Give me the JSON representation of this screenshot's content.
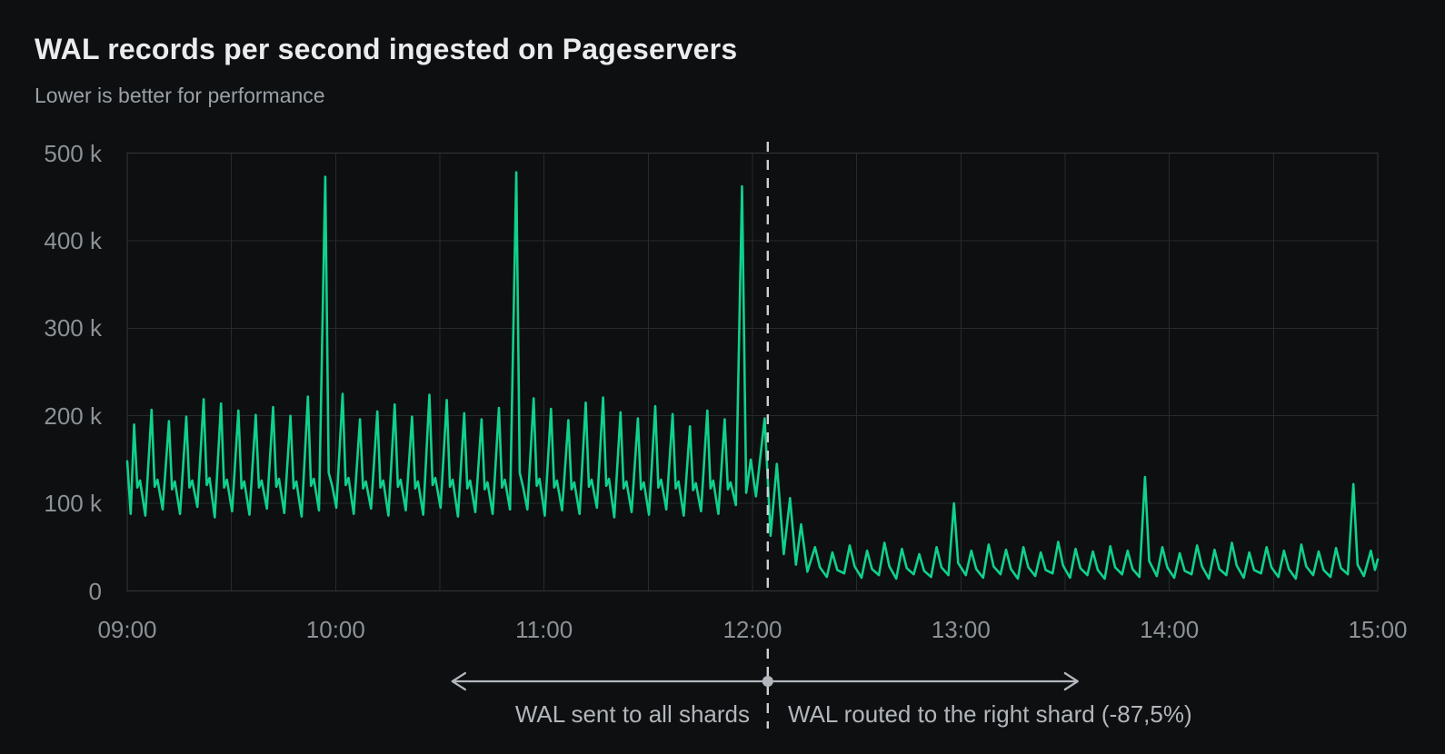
{
  "page": {
    "background": "#0d0f10"
  },
  "chart_data": {
    "type": "line",
    "title": "WAL records per second ingested on Pageservers",
    "subtitle": "Lower is better for performance",
    "unit": "WAL records per second (thousands)",
    "grid": true,
    "legend": false,
    "x_axis": {
      "range_minutes": [
        0,
        360
      ],
      "gridline_minutes": [
        0,
        30,
        60,
        90,
        120,
        150,
        180,
        210,
        240,
        270,
        300,
        330,
        360
      ],
      "tick_labels": [
        {
          "minutes": 0,
          "label": "09:00"
        },
        {
          "minutes": 60,
          "label": "10:00"
        },
        {
          "minutes": 120,
          "label": "11:00"
        },
        {
          "minutes": 180,
          "label": "12:00"
        },
        {
          "minutes": 240,
          "label": "13:00"
        },
        {
          "minutes": 300,
          "label": "14:00"
        },
        {
          "minutes": 360,
          "label": "15:00"
        }
      ]
    },
    "y_axis": {
      "range_thousands": [
        0,
        500
      ],
      "tick_labels": [
        {
          "value_k": 0,
          "label": "0"
        },
        {
          "value_k": 100,
          "label": "100 k"
        },
        {
          "value_k": 200,
          "label": "200 k"
        },
        {
          "value_k": 300,
          "label": "300 k"
        },
        {
          "value_k": 400,
          "label": "400 k"
        },
        {
          "value_k": 500,
          "label": "500 k"
        }
      ]
    },
    "series": [
      {
        "name": "WAL records per second ingested",
        "color": "#0fd18c",
        "points_minutes_vs_thousands": [
          [
            0,
            148
          ],
          [
            1,
            88
          ],
          [
            2,
            190
          ],
          [
            2.9,
            118
          ],
          [
            3.7,
            126
          ],
          [
            5.2,
            86
          ],
          [
            7,
            207
          ],
          [
            7.9,
            119
          ],
          [
            8.7,
            127
          ],
          [
            10.2,
            93
          ],
          [
            12,
            194
          ],
          [
            12.9,
            116
          ],
          [
            13.7,
            125
          ],
          [
            15.2,
            88
          ],
          [
            17,
            199
          ],
          [
            17.9,
            118
          ],
          [
            18.7,
            126
          ],
          [
            20.2,
            96
          ],
          [
            22,
            219
          ],
          [
            22.9,
            121
          ],
          [
            23.7,
            129
          ],
          [
            25.2,
            84
          ],
          [
            27,
            214
          ],
          [
            27.9,
            118
          ],
          [
            28.7,
            127
          ],
          [
            30.2,
            91
          ],
          [
            32,
            206
          ],
          [
            32.9,
            117
          ],
          [
            33.7,
            125
          ],
          [
            35.2,
            87
          ],
          [
            37,
            201
          ],
          [
            37.9,
            118
          ],
          [
            38.7,
            126
          ],
          [
            40.2,
            94
          ],
          [
            42,
            210
          ],
          [
            42.9,
            119
          ],
          [
            43.7,
            128
          ],
          [
            45.2,
            89
          ],
          [
            47,
            200
          ],
          [
            47.9,
            117
          ],
          [
            48.7,
            125
          ],
          [
            50.2,
            85
          ],
          [
            52,
            222
          ],
          [
            52.9,
            120
          ],
          [
            53.7,
            128
          ],
          [
            55.2,
            92
          ],
          [
            57,
            473
          ],
          [
            58,
            135
          ],
          [
            59,
            120
          ],
          [
            60.2,
            95
          ],
          [
            62,
            225
          ],
          [
            62.9,
            121
          ],
          [
            63.7,
            129
          ],
          [
            65.2,
            88
          ],
          [
            67,
            196
          ],
          [
            67.9,
            117
          ],
          [
            68.7,
            125
          ],
          [
            70.2,
            94
          ],
          [
            72,
            205
          ],
          [
            72.9,
            118
          ],
          [
            73.7,
            126
          ],
          [
            75.2,
            86
          ],
          [
            77,
            213
          ],
          [
            77.9,
            119
          ],
          [
            78.7,
            127
          ],
          [
            80.2,
            92
          ],
          [
            82,
            199
          ],
          [
            82.9,
            117
          ],
          [
            83.7,
            125
          ],
          [
            85.2,
            87
          ],
          [
            87,
            224
          ],
          [
            87.9,
            121
          ],
          [
            88.7,
            129
          ],
          [
            90.2,
            95
          ],
          [
            92,
            218
          ],
          [
            92.9,
            119
          ],
          [
            93.7,
            127
          ],
          [
            95.2,
            85
          ],
          [
            97,
            203
          ],
          [
            97.9,
            117
          ],
          [
            98.7,
            126
          ],
          [
            100.2,
            90
          ],
          [
            102,
            196
          ],
          [
            102.9,
            116
          ],
          [
            103.7,
            124
          ],
          [
            105.2,
            88
          ],
          [
            107,
            209
          ],
          [
            107.9,
            118
          ],
          [
            108.7,
            127
          ],
          [
            110.2,
            93
          ],
          [
            112,
            478
          ],
          [
            113,
            135
          ],
          [
            114,
            118
          ],
          [
            115.2,
            93
          ],
          [
            117,
            220
          ],
          [
            117.9,
            120
          ],
          [
            118.7,
            128
          ],
          [
            120.2,
            86
          ],
          [
            122,
            208
          ],
          [
            122.9,
            118
          ],
          [
            123.7,
            126
          ],
          [
            125.2,
            92
          ],
          [
            127,
            195
          ],
          [
            127.9,
            116
          ],
          [
            128.7,
            124
          ],
          [
            130.2,
            88
          ],
          [
            132,
            215
          ],
          [
            132.9,
            119
          ],
          [
            133.7,
            127
          ],
          [
            135.2,
            95
          ],
          [
            137,
            221
          ],
          [
            137.9,
            120
          ],
          [
            138.7,
            128
          ],
          [
            140.2,
            84
          ],
          [
            142,
            204
          ],
          [
            142.9,
            117
          ],
          [
            143.7,
            125
          ],
          [
            145.2,
            90
          ],
          [
            147,
            197
          ],
          [
            147.9,
            116
          ],
          [
            148.7,
            124
          ],
          [
            150.2,
            87
          ],
          [
            152,
            211
          ],
          [
            152.9,
            118
          ],
          [
            153.7,
            127
          ],
          [
            155.2,
            93
          ],
          [
            157,
            202
          ],
          [
            157.9,
            117
          ],
          [
            158.7,
            125
          ],
          [
            160.2,
            86
          ],
          [
            162,
            188
          ],
          [
            162.9,
            115
          ],
          [
            163.7,
            123
          ],
          [
            165.2,
            91
          ],
          [
            167,
            206
          ],
          [
            167.9,
            117
          ],
          [
            168.7,
            126
          ],
          [
            170.2,
            88
          ],
          [
            172,
            196
          ],
          [
            172.9,
            116
          ],
          [
            173.7,
            124
          ],
          [
            175.2,
            98
          ],
          [
            177,
            462
          ],
          [
            178.2,
            112
          ],
          [
            179.5,
            150
          ],
          [
            181,
            108
          ],
          [
            183.5,
            197
          ],
          [
            185.2,
            63
          ],
          [
            187,
            145
          ],
          [
            189,
            42
          ],
          [
            190.8,
            106
          ],
          [
            192.5,
            30
          ],
          [
            194,
            76
          ],
          [
            195.8,
            22
          ],
          [
            198,
            50
          ],
          [
            199.4,
            27
          ],
          [
            201.4,
            16
          ],
          [
            203,
            44
          ],
          [
            204.4,
            24
          ],
          [
            206.4,
            20
          ],
          [
            208,
            52
          ],
          [
            209.4,
            28
          ],
          [
            211.4,
            15
          ],
          [
            213,
            46
          ],
          [
            214.4,
            25
          ],
          [
            216.4,
            18
          ],
          [
            218,
            55
          ],
          [
            219.4,
            28
          ],
          [
            221.4,
            14
          ],
          [
            223,
            48
          ],
          [
            224.4,
            26
          ],
          [
            226.4,
            19
          ],
          [
            228,
            42
          ],
          [
            229.4,
            23
          ],
          [
            231.4,
            16
          ],
          [
            233,
            50
          ],
          [
            234.4,
            27
          ],
          [
            236.4,
            18
          ],
          [
            238,
            100
          ],
          [
            239.2,
            32
          ],
          [
            241.4,
            18
          ],
          [
            243,
            46
          ],
          [
            244.4,
            25
          ],
          [
            246.4,
            15
          ],
          [
            248,
            53
          ],
          [
            249.4,
            28
          ],
          [
            251.4,
            19
          ],
          [
            253,
            47
          ],
          [
            254.4,
            25
          ],
          [
            256.4,
            14
          ],
          [
            258,
            50
          ],
          [
            259.4,
            27
          ],
          [
            261.4,
            17
          ],
          [
            263,
            44
          ],
          [
            264.4,
            24
          ],
          [
            266.4,
            20
          ],
          [
            268,
            56
          ],
          [
            269.4,
            29
          ],
          [
            271.4,
            15
          ],
          [
            273,
            48
          ],
          [
            274.4,
            26
          ],
          [
            276.4,
            18
          ],
          [
            278,
            45
          ],
          [
            279.4,
            24
          ],
          [
            281.4,
            14
          ],
          [
            283,
            51
          ],
          [
            284.4,
            27
          ],
          [
            286.4,
            19
          ],
          [
            288,
            46
          ],
          [
            289.4,
            25
          ],
          [
            291.4,
            16
          ],
          [
            293,
            130
          ],
          [
            294.2,
            34
          ],
          [
            296.4,
            17
          ],
          [
            298,
            50
          ],
          [
            299.4,
            27
          ],
          [
            301.4,
            15
          ],
          [
            303,
            43
          ],
          [
            304.4,
            23
          ],
          [
            306.4,
            19
          ],
          [
            308,
            52
          ],
          [
            309.4,
            28
          ],
          [
            311.4,
            14
          ],
          [
            313,
            47
          ],
          [
            314.4,
            25
          ],
          [
            316.4,
            18
          ],
          [
            318,
            55
          ],
          [
            319.4,
            29
          ],
          [
            321.4,
            15
          ],
          [
            323,
            44
          ],
          [
            324.4,
            24
          ],
          [
            326.4,
            20
          ],
          [
            328,
            50
          ],
          [
            329.4,
            27
          ],
          [
            331.4,
            16
          ],
          [
            333,
            46
          ],
          [
            334.4,
            25
          ],
          [
            336.4,
            14
          ],
          [
            338,
            53
          ],
          [
            339.4,
            28
          ],
          [
            341.4,
            18
          ],
          [
            343,
            45
          ],
          [
            344.4,
            24
          ],
          [
            346.4,
            16
          ],
          [
            348,
            49
          ],
          [
            349.4,
            26
          ],
          [
            351.4,
            19
          ],
          [
            353,
            122
          ],
          [
            354.2,
            30
          ],
          [
            356,
            17
          ],
          [
            358,
            46
          ],
          [
            359.2,
            24
          ],
          [
            360,
            36
          ]
        ]
      }
    ]
  },
  "annotations": {
    "divider_minutes_from_start": 184.4,
    "divider_time_of_day": "12:04",
    "left_label": "WAL sent to all shards",
    "right_label": "WAL routed to the right shard (-87,5%)",
    "reduction_percent": "-87,5%"
  },
  "colors": {
    "background": "#0d0f10",
    "series_green": "#0fd18c",
    "gridline": "#282b2d",
    "plot_border": "#33373b",
    "divider_dash": "#ccd0d4",
    "arrow_gray": "#b3b7bd",
    "tick_text": "#8c9196",
    "title_text": "#eaecee"
  }
}
